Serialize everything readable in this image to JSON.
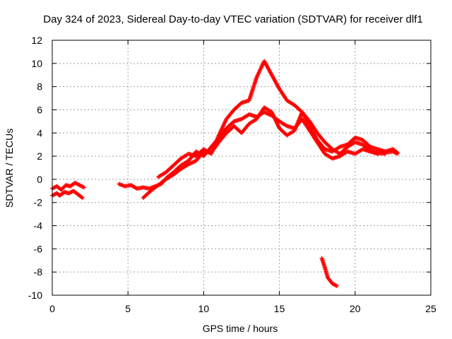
{
  "chart_data": {
    "type": "scatter",
    "title": "Day 324 of 2023, Sidereal Day-to-day VTEC variation (SDTVAR) for receiver dlf1",
    "xlabel": "GPS time / hours",
    "ylabel": "SDTVAR / TECUs",
    "xlim": [
      0,
      25
    ],
    "ylim": [
      -10,
      12
    ],
    "xticks": [
      0,
      5,
      10,
      15,
      20,
      25
    ],
    "yticks": [
      -10,
      -8,
      -6,
      -4,
      -2,
      0,
      2,
      4,
      6,
      8,
      10,
      12
    ],
    "grid": true,
    "marker": "+",
    "series": [
      {
        "name": "SDTVAR",
        "color": "#ff0000",
        "tracks": [
          [
            [
              0,
              -0.8
            ],
            [
              0.3,
              -0.6
            ],
            [
              0.6,
              -0.9
            ],
            [
              0.9,
              -0.5
            ],
            [
              1.2,
              -0.6
            ],
            [
              1.5,
              -0.3
            ],
            [
              1.8,
              -0.5
            ],
            [
              2.1,
              -0.7
            ]
          ],
          [
            [
              0,
              -1.4
            ],
            [
              0.3,
              -1.2
            ],
            [
              0.5,
              -1.4
            ],
            [
              0.8,
              -1.1
            ],
            [
              1.1,
              -1.2
            ],
            [
              1.4,
              -1.0
            ],
            [
              1.7,
              -1.3
            ],
            [
              2.0,
              -1.6
            ]
          ],
          [
            [
              4.4,
              -0.4
            ],
            [
              4.8,
              -0.6
            ],
            [
              5.2,
              -0.5
            ],
            [
              5.6,
              -0.8
            ],
            [
              6.0,
              -0.7
            ],
            [
              6.4,
              -0.8
            ],
            [
              6.8,
              -0.6
            ],
            [
              7.2,
              -0.4
            ],
            [
              7.6,
              0.2
            ],
            [
              8.0,
              0.6
            ],
            [
              8.5,
              1.2
            ],
            [
              9.0,
              1.6
            ],
            [
              9.5,
              2.4
            ],
            [
              10.0,
              2.0
            ],
            [
              10.5,
              2.8
            ],
            [
              11.0,
              3.6
            ],
            [
              11.5,
              4.4
            ],
            [
              12.0,
              5.0
            ],
            [
              12.5,
              5.2
            ],
            [
              13.0,
              5.6
            ],
            [
              13.5,
              5.4
            ],
            [
              14.0,
              5.8
            ],
            [
              14.5,
              5.5
            ],
            [
              15.0,
              5.0
            ],
            [
              15.5,
              4.6
            ],
            [
              16.0,
              4.4
            ],
            [
              16.5,
              5.2
            ],
            [
              17.0,
              4.2
            ],
            [
              17.5,
              3.2
            ],
            [
              18.0,
              2.2
            ],
            [
              18.5,
              1.8
            ],
            [
              19.0,
              2.0
            ],
            [
              19.5,
              2.4
            ],
            [
              20.0,
              2.2
            ],
            [
              20.5,
              2.6
            ],
            [
              21.0,
              2.4
            ],
            [
              21.5,
              2.2
            ],
            [
              22.0,
              2.3
            ],
            [
              22.5,
              2.4
            ],
            [
              22.8,
              2.2
            ]
          ],
          [
            [
              6.0,
              -1.6
            ],
            [
              6.5,
              -1.0
            ],
            [
              7.0,
              -0.5
            ],
            [
              7.5,
              0.0
            ],
            [
              8.0,
              0.4
            ],
            [
              8.5,
              0.9
            ],
            [
              9.0,
              1.3
            ],
            [
              9.5,
              1.6
            ],
            [
              10.0,
              2.4
            ],
            [
              10.5,
              2.3
            ],
            [
              11.0,
              3.2
            ],
            [
              11.5,
              4.0
            ],
            [
              12.0,
              4.6
            ],
            [
              12.5,
              4.0
            ],
            [
              13.0,
              4.8
            ],
            [
              13.5,
              5.2
            ],
            [
              14.0,
              6.2
            ],
            [
              14.5,
              5.8
            ],
            [
              15.0,
              4.4
            ],
            [
              15.5,
              3.8
            ],
            [
              16.0,
              4.2
            ],
            [
              16.5,
              5.8
            ],
            [
              17.0,
              4.6
            ],
            [
              17.5,
              3.4
            ],
            [
              18.0,
              2.6
            ],
            [
              18.5,
              2.4
            ],
            [
              19.0,
              2.8
            ],
            [
              19.5,
              3.0
            ],
            [
              20.0,
              3.6
            ],
            [
              20.5,
              3.4
            ],
            [
              21.0,
              2.8
            ],
            [
              21.5,
              2.6
            ],
            [
              22.0,
              2.4
            ],
            [
              22.5,
              2.6
            ],
            [
              22.8,
              2.3
            ]
          ],
          [
            [
              7.0,
              0.2
            ],
            [
              7.5,
              0.6
            ],
            [
              8.0,
              1.2
            ],
            [
              8.5,
              1.8
            ],
            [
              9.0,
              2.2
            ],
            [
              9.5,
              2.0
            ],
            [
              10.0,
              2.6
            ],
            [
              10.5,
              2.2
            ],
            [
              11.0,
              3.8
            ],
            [
              11.5,
              5.2
            ],
            [
              12.0,
              6.0
            ],
            [
              12.5,
              6.6
            ],
            [
              13.0,
              6.8
            ],
            [
              13.5,
              8.8
            ],
            [
              14.0,
              10.2
            ],
            [
              14.5,
              9.0
            ],
            [
              15.0,
              7.8
            ],
            [
              15.5,
              6.8
            ],
            [
              16.0,
              6.4
            ],
            [
              16.5,
              5.8
            ],
            [
              17.0,
              5.0
            ],
            [
              17.5,
              4.0
            ],
            [
              18.0,
              3.2
            ],
            [
              18.5,
              2.6
            ],
            [
              19.0,
              2.2
            ],
            [
              19.5,
              2.8
            ],
            [
              20.0,
              3.2
            ],
            [
              20.5,
              3.0
            ],
            [
              21.0,
              2.5
            ],
            [
              21.5,
              2.3
            ],
            [
              22.0,
              2.2
            ]
          ],
          [
            [
              17.8,
              -6.8
            ],
            [
              18.0,
              -7.6
            ],
            [
              18.2,
              -8.5
            ],
            [
              18.5,
              -9.0
            ],
            [
              18.8,
              -9.2
            ]
          ]
        ]
      }
    ]
  }
}
